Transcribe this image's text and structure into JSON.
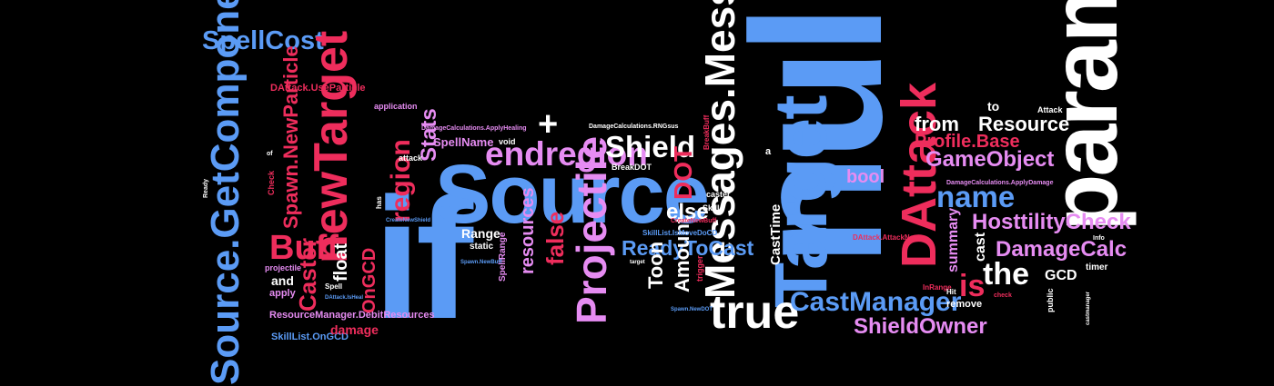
{
  "words": {
    "spellcost": "SpellCost",
    "source_getcomponent": "Source.GetComponent",
    "if": "if",
    "source": "Source",
    "null": "null",
    "param": "param",
    "target": "Target",
    "new_target": "newTarget",
    "messages_message": "Messages.Message",
    "true": "true",
    "dattack": "DAttack",
    "projectile": "Projectile",
    "endregion": "endregion",
    "shield": "Shield",
    "plus": "+",
    "name": "name",
    "castmanager": "CastManager",
    "shieldowner": "ShieldOwner",
    "damagecalc": "DamageCalc",
    "hosttilitycheck": "HosttilityCheck",
    "the": "the",
    "is": "is",
    "gameobject": "GameObject",
    "resource": "Resource",
    "from": "from",
    "profile_base": "Profile.Base",
    "readytocast": "ReadyToCast",
    "buff": "Buff",
    "spawn_newparticle": "Spawn.NewParticle",
    "caster": "Caster",
    "region": "region",
    "stats": "Stats",
    "false": "false",
    "resources": "resources",
    "dot": "DOT",
    "else": "else",
    "toon": "Toon",
    "amount": "Amount",
    "casttime": "CastTime",
    "dattack_useparticle": "DAttack.UseParticle",
    "resourcemanager_debitresources": "ResourceManager.DebitResources",
    "skilllist_ongcd": "SkillList.OnGCD",
    "damage": "damage",
    "ongcd": "OnGCD",
    "float": "float",
    "and": "and",
    "apply": "apply",
    "projectile_lc": "projectile",
    "spellname": "SpellName",
    "range": "Range",
    "bool": "bool",
    "summary": "summary",
    "cast": "cast",
    "gcd": "GCD",
    "timer": "timer",
    "remove": "remove",
    "to": "to",
    "attack": "Attack",
    "application": "application",
    "breakdot": "BreakDOT",
    "void": "void",
    "static": "static",
    "spellrange": "SpellRange",
    "skill": "Skill",
    "caster_lc": "caster",
    "dattack_attackname": "DAttack.AttackName",
    "inrange": "InRange",
    "check": "Check",
    "spell": "Spell",
    "has": "has",
    "public": "public",
    "attack_lc": "attack",
    "a": "a",
    "trigger": "trigger",
    "damagecalculations_rngsus": "DamageCalculations.RNGsus",
    "damagecalculations_applyhealing": "DamageCalculations.ApplyHealing",
    "damagecalculations_applydamage": "DamageCalculations.ApplyDamage",
    "skilllist_ismovedocd": "SkillList.IsMoveDoCD",
    "createnewbuff": "CreateNewBuff",
    "createnewshield": "CreateNewShield",
    "spawn_newdot": "Spawn.NewDOT",
    "info": "Info",
    "spawn_newbuff": "Spawn.NewBuff",
    "check_lc": "check",
    "ready": "Ready",
    "target_lc": "target",
    "hit": "Hit",
    "of": "of",
    "dattack_isheal": "DAttack.IsHeal",
    "breakbuff": "BreakBuff",
    "castmanager_lc": "castmanager"
  },
  "colors": {
    "blue": "#5b9bf5",
    "red": "#ee2d5c",
    "pink": "#e68cf2",
    "white": "#ffffff",
    "background": "#000000"
  }
}
